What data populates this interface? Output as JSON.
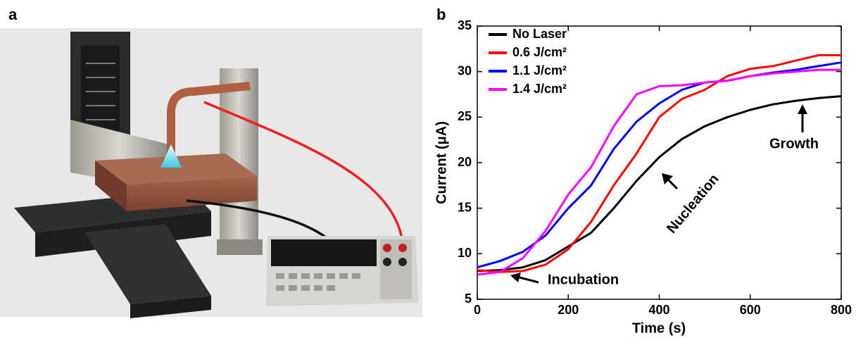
{
  "panel_labels": [
    "a",
    "b"
  ],
  "chart_data": {
    "type": "line",
    "xlabel": "Time (s)",
    "ylabel": "Current (μA)",
    "x": [
      0,
      50,
      100,
      150,
      200,
      250,
      300,
      350,
      400,
      450,
      500,
      550,
      600,
      650,
      700,
      750,
      800
    ],
    "series": [
      {
        "name": "No Laser",
        "color": "#000000",
        "values": [
          8.1,
          8.2,
          8.5,
          9.3,
          10.8,
          12.3,
          15,
          18,
          20.6,
          22.6,
          24,
          25,
          25.8,
          26.4,
          26.8,
          27.1,
          27.3
        ]
      },
      {
        "name": "0.6 J/cm²",
        "color": "#ff0000",
        "values": [
          8.2,
          8.0,
          8.1,
          8.8,
          10.5,
          13.5,
          17.5,
          21,
          25,
          27,
          28,
          29.5,
          30.3,
          30.6,
          31.2,
          31.8,
          31.8
        ]
      },
      {
        "name": "1.1 J/cm²",
        "color": "#0000ff",
        "values": [
          8.5,
          9.2,
          10.2,
          12,
          15,
          17.5,
          21.5,
          24.5,
          26.5,
          28,
          28.8,
          29,
          29.5,
          29.9,
          30.2,
          30.6,
          31
        ]
      },
      {
        "name": "1.4 J/cm²",
        "color": "#ff00ff",
        "values": [
          7.7,
          8.0,
          9.5,
          12.5,
          16.5,
          19.5,
          24,
          27.5,
          28.4,
          28.5,
          28.8,
          29,
          29.5,
          29.8,
          30,
          30.2,
          30.2
        ]
      }
    ],
    "xlim": [
      0,
      800
    ],
    "xticks": [
      0,
      200,
      400,
      600,
      800
    ],
    "ylim": [
      5,
      35
    ],
    "yticks": [
      5,
      10,
      15,
      20,
      25,
      30,
      35
    ],
    "legend": "upper-left",
    "annotations": [
      "Incubation",
      "Nucleation",
      "Growth"
    ]
  }
}
